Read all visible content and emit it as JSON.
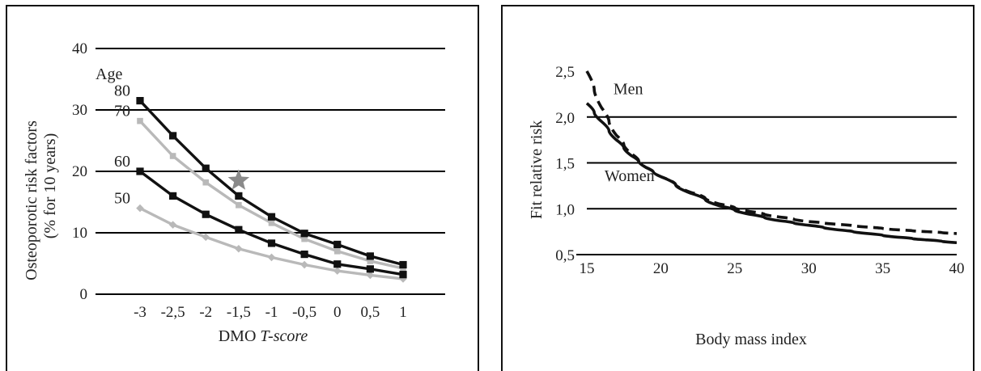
{
  "chart_data": [
    {
      "type": "line",
      "title": "",
      "xlabel": "DMO",
      "xlabel_italic": "T-score",
      "ylabel": "Osteoporotic risk factors",
      "ylabel2": "(% for 10 years)",
      "ylim": [
        0,
        40
      ],
      "yticks": [
        "0",
        "10",
        "20",
        "30",
        "40"
      ],
      "xticks": [
        "-3",
        "-2,5",
        "-2",
        "-1,5",
        "-1",
        "-0,5",
        "0",
        "0,5",
        "1"
      ],
      "x": [
        -3,
        -2.5,
        -2,
        -1.5,
        -1,
        -0.5,
        0,
        0.5,
        1
      ],
      "grid": true,
      "legend_title": "Age",
      "series": [
        {
          "name": "80",
          "color": "#111111",
          "marker": "square",
          "values": [
            31.5,
            25.8,
            20.5,
            16,
            12.6,
            9.9,
            8.1,
            6.2,
            4.8
          ]
        },
        {
          "name": "70",
          "color": "#b9b9b9",
          "marker": "square",
          "values": [
            28.2,
            22.5,
            18.2,
            14.5,
            11.6,
            9,
            7,
            5.4,
            4.2
          ]
        },
        {
          "name": "60",
          "color": "#111111",
          "marker": "square",
          "values": [
            20,
            16,
            13,
            10.5,
            8.3,
            6.5,
            4.9,
            4.1,
            3.2
          ]
        },
        {
          "name": "50",
          "color": "#b9b9b9",
          "marker": "diamond",
          "values": [
            14,
            11.3,
            9.3,
            7.4,
            6,
            4.8,
            3.8,
            3.1,
            2.5
          ]
        }
      ],
      "annotations": [
        {
          "type": "star",
          "x": -1.5,
          "y": 18.5,
          "color": "#8a8a8a"
        }
      ]
    },
    {
      "type": "line",
      "title": "",
      "xlabel": "Body mass index",
      "ylabel": "Fit relative risk",
      "xlim": [
        15,
        40
      ],
      "ylim": [
        0.5,
        2.5
      ],
      "xticks": [
        "15",
        "20",
        "25",
        "30",
        "35",
        "40"
      ],
      "yticks": [
        "0,5",
        "1,0",
        "1,5",
        "2,0",
        "2,5"
      ],
      "grid": true,
      "series": [
        {
          "name": "Men",
          "style": "dashed",
          "color": "#111111",
          "x": [
            15,
            16,
            17,
            18,
            19,
            20,
            22,
            24,
            26,
            28,
            30,
            32,
            34,
            36,
            38,
            40
          ],
          "values": [
            2.5,
            2.1,
            1.8,
            1.6,
            1.45,
            1.35,
            1.18,
            1.05,
            0.97,
            0.91,
            0.86,
            0.83,
            0.8,
            0.77,
            0.75,
            0.73
          ]
        },
        {
          "name": "Women",
          "style": "solid",
          "color": "#111111",
          "x": [
            15,
            16,
            17,
            18,
            19,
            20,
            22,
            24,
            26,
            28,
            30,
            32,
            34,
            36,
            38,
            40
          ],
          "values": [
            2.15,
            1.95,
            1.75,
            1.58,
            1.45,
            1.35,
            1.17,
            1.03,
            0.94,
            0.87,
            0.82,
            0.77,
            0.73,
            0.69,
            0.66,
            0.63
          ]
        }
      ]
    }
  ]
}
